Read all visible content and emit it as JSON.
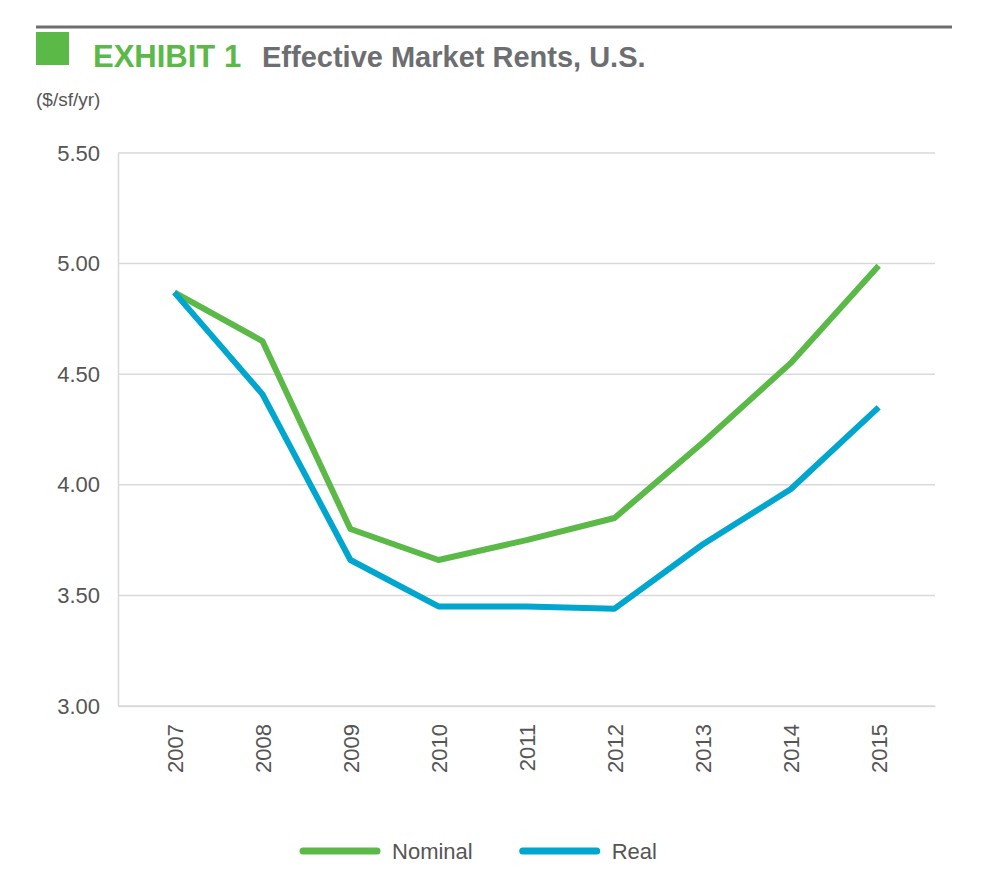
{
  "chart_data": {
    "type": "line",
    "annotations": [
      "EXHIBIT 1"
    ],
    "title": "Effective Market Rents, U.S.",
    "y_label": "($/sf/yr)",
    "categories": [
      "2007",
      "2008",
      "2009",
      "2010",
      "2011",
      "2012",
      "2013",
      "2014",
      "2015"
    ],
    "series": [
      {
        "name": "Nominal",
        "color": "#5ab947",
        "values": [
          4.87,
          4.65,
          3.8,
          3.66,
          3.75,
          3.85,
          4.19,
          4.55,
          4.99
        ]
      },
      {
        "name": "Real",
        "color": "#00a6ce",
        "values": [
          4.87,
          4.41,
          3.66,
          3.45,
          3.45,
          3.44,
          3.73,
          3.98,
          4.35
        ]
      }
    ],
    "ylim": [
      3,
      5.5
    ],
    "yticks": [
      {
        "value": 3,
        "label": "3.00"
      },
      {
        "value": 3.5,
        "label": "3.50"
      },
      {
        "value": 4,
        "label": "4.00"
      },
      {
        "value": 4.5,
        "label": "4.50"
      },
      {
        "value": 5,
        "label": "5.00"
      },
      {
        "value": 5.5,
        "label": "5.50"
      }
    ],
    "grid": true,
    "legend": "bottom"
  }
}
